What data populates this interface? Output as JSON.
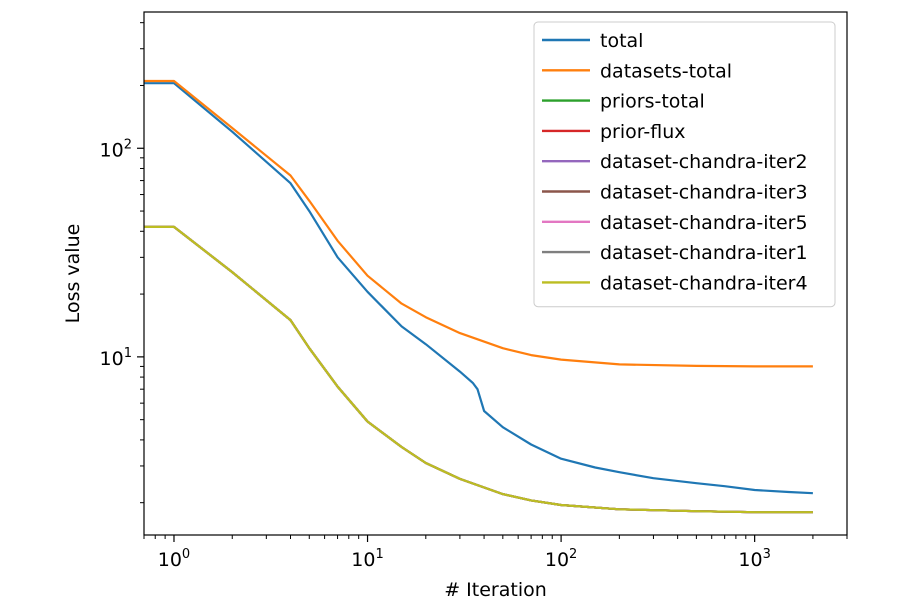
{
  "chart_data": {
    "type": "line",
    "title": "",
    "xlabel": "# Iteration",
    "ylabel": "Loss value",
    "xscale": "log",
    "yscale": "log",
    "xlim": [
      0.7,
      3000
    ],
    "ylim": [
      1.4,
      450
    ],
    "x_ticks": [
      {
        "value": 1,
        "base": "10",
        "exp": "0"
      },
      {
        "value": 10,
        "base": "10",
        "exp": "1"
      },
      {
        "value": 100,
        "base": "10",
        "exp": "2"
      },
      {
        "value": 1000,
        "base": "10",
        "exp": "3"
      }
    ],
    "y_ticks": [
      {
        "value": 10,
        "base": "10",
        "exp": "1"
      },
      {
        "value": 100,
        "base": "10",
        "exp": "2"
      }
    ],
    "grid": false,
    "legend_position": "top-right",
    "series": [
      {
        "name": "total",
        "color": "#1f77b4",
        "points": [
          [
            0.7,
            205
          ],
          [
            1,
            205
          ],
          [
            2,
            120
          ],
          [
            4,
            68
          ],
          [
            5,
            50
          ],
          [
            7,
            30
          ],
          [
            10,
            20.5
          ],
          [
            15,
            14
          ],
          [
            20,
            11.5
          ],
          [
            30,
            8.5
          ],
          [
            35,
            7.5
          ],
          [
            37,
            7.0
          ],
          [
            40,
            5.5
          ],
          [
            50,
            4.6
          ],
          [
            70,
            3.8
          ],
          [
            100,
            3.25
          ],
          [
            150,
            2.95
          ],
          [
            200,
            2.8
          ],
          [
            300,
            2.62
          ],
          [
            500,
            2.48
          ],
          [
            700,
            2.4
          ],
          [
            1000,
            2.3
          ],
          [
            1500,
            2.25
          ],
          [
            2000,
            2.22
          ]
        ]
      },
      {
        "name": "datasets-total",
        "color": "#ff7f0e",
        "points": [
          [
            0.7,
            210
          ],
          [
            1,
            210
          ],
          [
            2,
            125
          ],
          [
            4,
            74
          ],
          [
            5,
            56
          ],
          [
            7,
            36
          ],
          [
            10,
            24.5
          ],
          [
            15,
            18
          ],
          [
            20,
            15.5
          ],
          [
            30,
            13
          ],
          [
            50,
            11
          ],
          [
            70,
            10.2
          ],
          [
            100,
            9.7
          ],
          [
            200,
            9.2
          ],
          [
            500,
            9.05
          ],
          [
            1000,
            9.0
          ],
          [
            2000,
            9.0
          ]
        ]
      },
      {
        "name": "priors-total",
        "color": "#2ca02c",
        "points": [
          [
            0.7,
            42
          ],
          [
            1,
            42
          ],
          [
            2,
            25.5
          ],
          [
            4,
            15
          ],
          [
            5,
            11
          ],
          [
            7,
            7.2
          ],
          [
            10,
            4.9
          ],
          [
            15,
            3.7
          ],
          [
            20,
            3.1
          ],
          [
            30,
            2.6
          ],
          [
            50,
            2.2
          ],
          [
            70,
            2.05
          ],
          [
            100,
            1.95
          ],
          [
            200,
            1.86
          ],
          [
            500,
            1.82
          ],
          [
            1000,
            1.8
          ],
          [
            2000,
            1.8
          ]
        ]
      },
      {
        "name": "prior-flux",
        "color": "#d62728",
        "points": [
          [
            0.7,
            42
          ],
          [
            1,
            42
          ],
          [
            2,
            25.5
          ],
          [
            4,
            15
          ],
          [
            5,
            11
          ],
          [
            7,
            7.2
          ],
          [
            10,
            4.9
          ],
          [
            15,
            3.7
          ],
          [
            20,
            3.1
          ],
          [
            30,
            2.6
          ],
          [
            50,
            2.2
          ],
          [
            70,
            2.05
          ],
          [
            100,
            1.95
          ],
          [
            200,
            1.86
          ],
          [
            500,
            1.82
          ],
          [
            1000,
            1.8
          ],
          [
            2000,
            1.8
          ]
        ]
      },
      {
        "name": "dataset-chandra-iter2",
        "color": "#9467bd",
        "points": [
          [
            0.7,
            42
          ],
          [
            1,
            42
          ],
          [
            2,
            25.5
          ],
          [
            4,
            15
          ],
          [
            5,
            11
          ],
          [
            7,
            7.2
          ],
          [
            10,
            4.9
          ],
          [
            15,
            3.7
          ],
          [
            20,
            3.1
          ],
          [
            30,
            2.6
          ],
          [
            50,
            2.2
          ],
          [
            70,
            2.05
          ],
          [
            100,
            1.95
          ],
          [
            200,
            1.86
          ],
          [
            500,
            1.82
          ],
          [
            1000,
            1.8
          ],
          [
            2000,
            1.8
          ]
        ]
      },
      {
        "name": "dataset-chandra-iter3",
        "color": "#8c564b",
        "points": [
          [
            0.7,
            42
          ],
          [
            1,
            42
          ],
          [
            2,
            25.5
          ],
          [
            4,
            15
          ],
          [
            5,
            11
          ],
          [
            7,
            7.2
          ],
          [
            10,
            4.9
          ],
          [
            15,
            3.7
          ],
          [
            20,
            3.1
          ],
          [
            30,
            2.6
          ],
          [
            50,
            2.2
          ],
          [
            70,
            2.05
          ],
          [
            100,
            1.95
          ],
          [
            200,
            1.86
          ],
          [
            500,
            1.82
          ],
          [
            1000,
            1.8
          ],
          [
            2000,
            1.8
          ]
        ]
      },
      {
        "name": "dataset-chandra-iter5",
        "color": "#e377c2",
        "points": [
          [
            0.7,
            42
          ],
          [
            1,
            42
          ],
          [
            2,
            25.5
          ],
          [
            4,
            15
          ],
          [
            5,
            11
          ],
          [
            7,
            7.2
          ],
          [
            10,
            4.9
          ],
          [
            15,
            3.7
          ],
          [
            20,
            3.1
          ],
          [
            30,
            2.6
          ],
          [
            50,
            2.2
          ],
          [
            70,
            2.05
          ],
          [
            100,
            1.95
          ],
          [
            200,
            1.86
          ],
          [
            500,
            1.82
          ],
          [
            1000,
            1.8
          ],
          [
            2000,
            1.8
          ]
        ]
      },
      {
        "name": "dataset-chandra-iter1",
        "color": "#7f7f7f",
        "points": [
          [
            0.7,
            42
          ],
          [
            1,
            42
          ],
          [
            2,
            25.5
          ],
          [
            4,
            15
          ],
          [
            5,
            11
          ],
          [
            7,
            7.2
          ],
          [
            10,
            4.9
          ],
          [
            15,
            3.7
          ],
          [
            20,
            3.1
          ],
          [
            30,
            2.6
          ],
          [
            50,
            2.2
          ],
          [
            70,
            2.05
          ],
          [
            100,
            1.95
          ],
          [
            200,
            1.86
          ],
          [
            500,
            1.82
          ],
          [
            1000,
            1.8
          ],
          [
            2000,
            1.8
          ]
        ]
      },
      {
        "name": "dataset-chandra-iter4",
        "color": "#bcbd22",
        "points": [
          [
            0.7,
            42
          ],
          [
            1,
            42
          ],
          [
            2,
            25.5
          ],
          [
            4,
            15
          ],
          [
            5,
            11
          ],
          [
            7,
            7.2
          ],
          [
            10,
            4.9
          ],
          [
            15,
            3.7
          ],
          [
            20,
            3.1
          ],
          [
            30,
            2.6
          ],
          [
            50,
            2.2
          ],
          [
            70,
            2.05
          ],
          [
            100,
            1.95
          ],
          [
            200,
            1.86
          ],
          [
            500,
            1.82
          ],
          [
            1000,
            1.8
          ],
          [
            2000,
            1.8
          ]
        ]
      }
    ]
  }
}
